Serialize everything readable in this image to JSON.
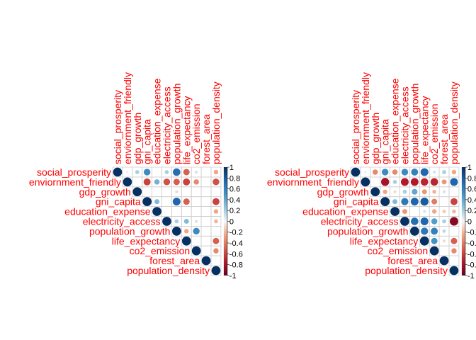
{
  "chart_data": [
    {
      "type": "heatmap",
      "variant": "corrplot-upper-circle",
      "variables": [
        "social_prosperity",
        "enviornment_friendly",
        "gdp_growth",
        "gni_capita",
        "education_expense",
        "electricity_access",
        "population_growth",
        "life_expectancy",
        "co2_emission",
        "forest_area",
        "population_density"
      ],
      "matrix": [
        [
          1,
          0.05,
          0.2,
          0.55,
          null,
          0.2,
          0.7,
          -0.5,
          0.1,
          null,
          -0.25
        ],
        [
          null,
          1,
          null,
          -0.6,
          0.35,
          -0.55,
          -0.5,
          -0.6,
          -0.35,
          null,
          -0.55
        ],
        [
          null,
          null,
          1,
          null,
          null,
          null,
          -0.1,
          null,
          null,
          null,
          null
        ],
        [
          null,
          null,
          null,
          1,
          0.3,
          null,
          0.75,
          -0.5,
          null,
          null,
          -0.6
        ],
        [
          null,
          null,
          null,
          null,
          1,
          null,
          null,
          null,
          null,
          null,
          -0.25
        ],
        [
          null,
          null,
          null,
          null,
          null,
          1,
          0.2,
          0.3,
          0.1,
          null,
          -0.2
        ],
        [
          null,
          null,
          null,
          null,
          null,
          null,
          1,
          -0.25,
          0.55,
          null,
          null
        ],
        [
          null,
          null,
          null,
          null,
          null,
          null,
          null,
          1,
          null,
          null,
          -0.5
        ],
        [
          null,
          null,
          null,
          null,
          null,
          null,
          null,
          null,
          1,
          null,
          -0.35
        ],
        [
          null,
          null,
          null,
          null,
          null,
          null,
          null,
          null,
          null,
          1,
          null
        ],
        [
          null,
          null,
          null,
          null,
          null,
          null,
          null,
          null,
          null,
          null,
          1
        ]
      ],
      "colorbar": {
        "ticks": [
          "1",
          "0.8",
          "0.6",
          "0.4",
          "0.2",
          "0",
          "-0.2",
          "-0.4",
          "-0.6",
          "-0.8",
          "-1"
        ],
        "range": [
          -1,
          1
        ]
      }
    },
    {
      "type": "heatmap",
      "variant": "corrplot-upper-circle",
      "variables": [
        "social_prosperity",
        "enviornment_friendly",
        "gdp_growth",
        "gni_capita",
        "education_expense",
        "electricity_access",
        "population_growth",
        "life_expectancy",
        "co2_emission",
        "forest_area",
        "population_density"
      ],
      "matrix": [
        [
          1,
          0.05,
          -0.35,
          0.55,
          -0.35,
          0.55,
          0.6,
          0.75,
          0.1,
          0.2,
          -0.25
        ],
        [
          null,
          1,
          null,
          -0.8,
          0.2,
          -0.75,
          -0.75,
          -0.7,
          -0.7,
          -0.3,
          0.75
        ],
        [
          null,
          null,
          1,
          -0.25,
          -0.1,
          0.2,
          0.4,
          -0.3,
          -0.2,
          0.1,
          null
        ],
        [
          null,
          null,
          null,
          1,
          0.3,
          0.65,
          0.75,
          0.8,
          -0.4,
          null,
          -0.6
        ],
        [
          null,
          null,
          null,
          null,
          1,
          -0.3,
          null,
          0.1,
          -0.25,
          -0.15,
          -0.2
        ],
        [
          null,
          null,
          null,
          null,
          null,
          1,
          0.7,
          0.75,
          0.45,
          0.2,
          -0.9
        ],
        [
          null,
          null,
          null,
          null,
          null,
          null,
          1,
          0.65,
          0.6,
          0.15,
          null
        ],
        [
          null,
          null,
          null,
          null,
          null,
          null,
          null,
          1,
          0.5,
          -0.1,
          -0.5
        ],
        [
          null,
          null,
          null,
          null,
          null,
          null,
          null,
          null,
          1,
          null,
          -0.35
        ],
        [
          null,
          null,
          null,
          null,
          null,
          null,
          null,
          null,
          null,
          1,
          null
        ],
        [
          null,
          null,
          null,
          null,
          null,
          null,
          null,
          null,
          null,
          null,
          1
        ]
      ],
      "colorbar": {
        "ticks": [
          "1",
          "0.8",
          "0.6",
          "0.4",
          "0.2",
          "0",
          "-0.2",
          "-0.4",
          "-0.6",
          "-0.8",
          "-1"
        ],
        "range": [
          -1,
          1
        ]
      }
    }
  ]
}
